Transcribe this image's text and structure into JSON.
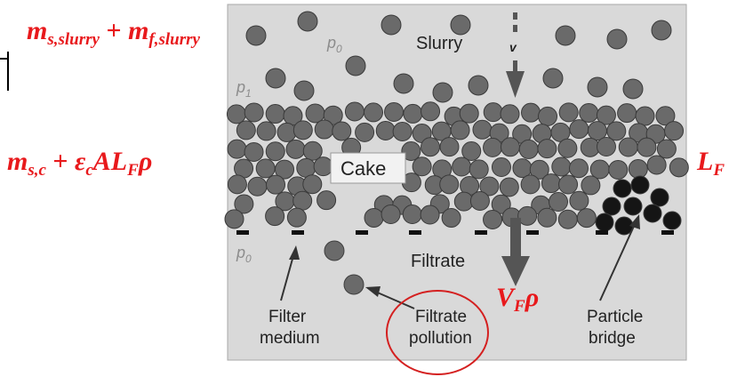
{
  "labels": {
    "slurry": "Slurry",
    "velocity": "v",
    "cake": "Cake",
    "filtrate": "Filtrate",
    "filter_medium_line1": "Filter",
    "filter_medium_line2": "medium",
    "filtrate_pollution_line1": "Filtrate",
    "filtrate_pollution_line2": "pollution",
    "particle_bridge_line1": "Particle",
    "particle_bridge_line2": "bridge"
  },
  "pressures": {
    "p_top": "p",
    "p_top_sub": "0",
    "p_cake": "p",
    "p_cake_sub": "1",
    "p_bottom": "p",
    "p_bottom_sub": "0"
  },
  "equations": {
    "slurry_mass": {
      "m1": "m",
      "sub1": "s,slurry",
      "plus": " + ",
      "m2": "m",
      "sub2": "f,slurry"
    },
    "cake_mass": {
      "m": "m",
      "sub_m": "s,c",
      "plus": " + ",
      "eps": "ε",
      "sub_eps": "c",
      "A": "AL",
      "sub_L": "F",
      "rho": "ρ"
    },
    "cake_thickness": {
      "L": "L",
      "sub": "F"
    },
    "filtrate_mass": {
      "V": "V",
      "sub": "F",
      "rho": "ρ"
    }
  },
  "colors": {
    "panel_bg": "#d9d9d9",
    "particle": "#6a6a6a",
    "particle_bridge": "#151515",
    "arrow": "#555555",
    "equation_red": "#e8191c",
    "circle_red": "#d42020"
  }
}
